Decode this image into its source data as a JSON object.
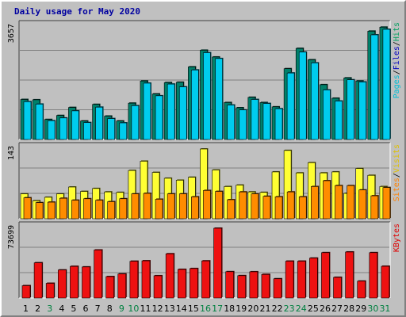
{
  "chart_data": {
    "type": "bar",
    "title": "Daily usage for May 2020",
    "categories": [
      "1",
      "2",
      "3",
      "4",
      "5",
      "6",
      "7",
      "8",
      "9",
      "10",
      "11",
      "12",
      "13",
      "14",
      "15",
      "16",
      "17",
      "18",
      "19",
      "20",
      "21",
      "22",
      "23",
      "24",
      "25",
      "26",
      "27",
      "28",
      "29",
      "30",
      "31"
    ],
    "weekend_days": [
      "3",
      "9",
      "10",
      "16",
      "17",
      "23",
      "24",
      "30",
      "31"
    ],
    "panels": [
      {
        "max_label": "3657",
        "max": 3657,
        "legend": [
          "Pages",
          "Files",
          "Hits"
        ],
        "legend_colors": [
          "#00bcd4",
          "#0000c0",
          "#00a060"
        ],
        "series": [
          {
            "name": "Hits",
            "color": "#00806a",
            "values": [
              1300,
              1290,
              650,
              780,
              1040,
              600,
              1140,
              760,
              600,
              1180,
              1900,
              1480,
              1850,
              1860,
              2360,
              2900,
              2680,
              1200,
              1030,
              1370,
              1200,
              1060,
              2300,
              2960,
              2590,
              1780,
              1340,
              2000,
              1900,
              3520,
              3650
            ]
          },
          {
            "name": "Files",
            "color": "#00ccee",
            "values": [
              1230,
              1150,
              610,
              700,
              930,
              550,
              1050,
              680,
              540,
              1100,
              1830,
              1420,
              1800,
              1710,
              2260,
              2820,
              2630,
              1120,
              960,
              1300,
              1170,
              1000,
              2160,
              2840,
              2490,
              1610,
              1250,
              1940,
              1870,
              3400,
              3580
            ]
          }
        ]
      },
      {
        "max_label": "143",
        "max": 143,
        "legend": [
          "Sites",
          "Visits"
        ],
        "legend_colors": [
          "#ff8000",
          "#e0c000"
        ],
        "series": [
          {
            "name": "Visits",
            "color": "#ffff33",
            "values": [
              51,
              37,
              44,
              51,
              65,
              56,
              62,
              55,
              54,
              99,
              118,
              95,
              83,
              79,
              85,
              143,
              100,
              66,
              69,
              55,
              54,
              96,
              140,
              94,
              115,
              94,
              96,
              52,
              103,
              89,
              66
            ]
          },
          {
            "name": "Sites",
            "color": "#ff8c00",
            "values": [
              43,
              33,
              34,
              42,
              38,
              41,
              38,
              35,
              41,
              51,
              52,
              40,
              51,
              51,
              45,
              58,
              56,
              39,
              55,
              51,
              46,
              45,
              55,
              45,
              66,
              78,
              68,
              68,
              59,
              47,
              64
            ]
          }
        ]
      },
      {
        "max_label": "73699",
        "max": 73699,
        "legend": [
          "KBytes"
        ],
        "legend_colors": [
          "#e00000"
        ],
        "series": [
          {
            "name": "KBytes",
            "color": "#ee1111",
            "values": [
              13000,
              37200,
              15500,
              29600,
              33400,
              32800,
              50700,
              22600,
              25400,
              38800,
              39300,
              23500,
              46700,
              30200,
              31100,
              39200,
              73699,
              27800,
              23600,
              27700,
              24900,
              20300,
              38900,
              38900,
              42100,
              47900,
              21800,
              48600,
              17800,
              47900,
              33500
            ]
          }
        ]
      }
    ]
  }
}
